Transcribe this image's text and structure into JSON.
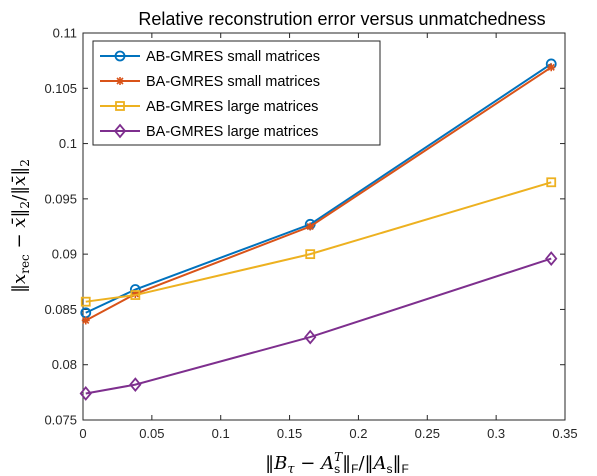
{
  "chart_data": {
    "type": "line",
    "title": "Relative reconstrution error versus unmatchedness",
    "xlabel": "‖B_τ − A_s^T‖_F / ‖A_s‖_F",
    "ylabel": "‖x_rec − x̄‖₂ / ‖x̄‖₂",
    "xlim": [
      0,
      0.35
    ],
    "ylim": [
      0.075,
      0.11
    ],
    "xticks": [
      0,
      0.05,
      0.1,
      0.15,
      0.2,
      0.25,
      0.3,
      0.35
    ],
    "xtick_labels": [
      "0",
      "0.05",
      "0.1",
      "0.15",
      "0.2",
      "0.25",
      "0.3",
      "0.35"
    ],
    "yticks": [
      0.075,
      0.08,
      0.085,
      0.09,
      0.095,
      0.1,
      0.105,
      0.11
    ],
    "ytick_labels": [
      "0.075",
      "0.08",
      "0.085",
      "0.09",
      "0.095",
      "0.1",
      "0.105",
      "0.11"
    ],
    "legend_position": "top-left",
    "grid": false,
    "x": [
      0.002,
      0.038,
      0.165,
      0.34
    ],
    "series": [
      {
        "name": "AB-GMRES small matrices",
        "color": "#0072BD",
        "marker": "circle",
        "values": [
          0.0847,
          0.0868,
          0.0927,
          0.1072
        ]
      },
      {
        "name": "BA-GMRES small matrices",
        "color": "#D95319",
        "marker": "asterisk",
        "values": [
          0.084,
          0.0864,
          0.0925,
          0.1069
        ]
      },
      {
        "name": "AB-GMRES large matrices",
        "color": "#EDB120",
        "marker": "square",
        "values": [
          0.0857,
          0.0863,
          0.09,
          0.0965
        ]
      },
      {
        "name": "BA-GMRES large matrices",
        "color": "#7E2F8E",
        "marker": "diamond",
        "values": [
          0.0774,
          0.0782,
          0.0825,
          0.0896
        ]
      }
    ]
  }
}
